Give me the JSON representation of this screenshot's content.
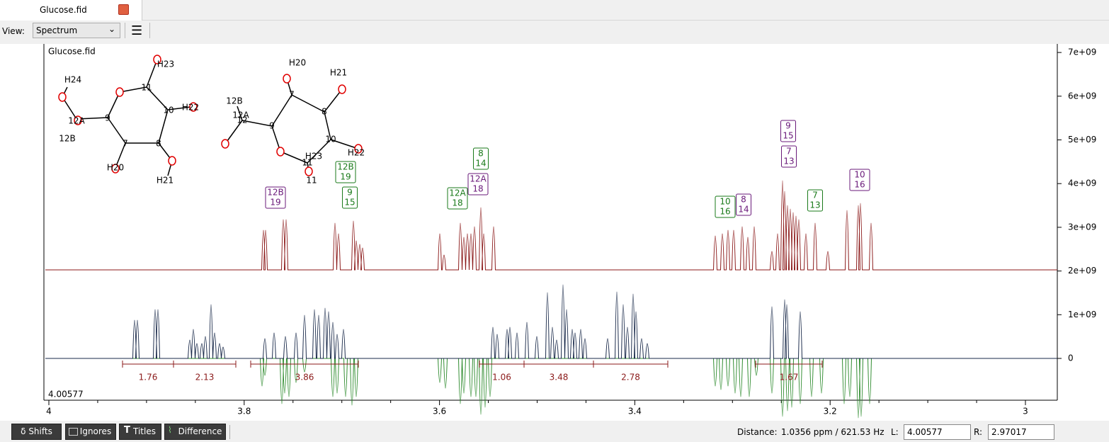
{
  "tabs": [
    {
      "label": "Glucose.fid"
    }
  ],
  "toolbar": {
    "view_label": "View:",
    "view_value": "Spectrum"
  },
  "plot": {
    "title": "Glucose.fid",
    "y_ticks": [
      "0",
      "1e+09",
      "2e+09",
      "3e+09",
      "4e+09",
      "5e+09",
      "6e+09",
      "7e+09"
    ],
    "x_ticks": [
      "4",
      "3.8",
      "3.6",
      "3.4",
      "3.2",
      "3"
    ],
    "cursor_label": "4.00577",
    "integrals": [
      "1.76",
      "2.13",
      "3.86",
      "1.06",
      "3.48",
      "2.78",
      "1.67"
    ],
    "peak_labels": [
      [
        "12B",
        "19"
      ],
      [
        "12B",
        "19"
      ],
      [
        "9",
        "15"
      ],
      [
        "8",
        "14"
      ],
      [
        "12A",
        "18"
      ],
      [
        "12A",
        "18"
      ],
      [
        "10",
        "16"
      ],
      [
        "8",
        "14"
      ],
      [
        "9",
        "15"
      ],
      [
        "7",
        "13"
      ],
      [
        "7",
        "13"
      ],
      [
        "10",
        "16"
      ]
    ],
    "molecule_1": [
      "H24",
      "12A",
      "12B",
      "9",
      "11",
      "H23",
      "10",
      "H22",
      "7",
      "H20",
      "8",
      "H21"
    ],
    "molecule_2": [
      "H20",
      "7",
      "H21",
      "8",
      "12B",
      "12A",
      "12",
      "9",
      "10",
      "H22",
      "H23",
      "11",
      "11"
    ]
  },
  "bottom_bar": {
    "buttons": [
      "δ Shifts",
      "Ignores",
      "Titles",
      "Difference"
    ],
    "distance_label": "Distance:",
    "distance_value": "1.0356 ppm / 621.53 Hz",
    "left_label": "L:",
    "left_value": "4.00577",
    "right_label": "R:",
    "right_value": "2.97017"
  }
}
